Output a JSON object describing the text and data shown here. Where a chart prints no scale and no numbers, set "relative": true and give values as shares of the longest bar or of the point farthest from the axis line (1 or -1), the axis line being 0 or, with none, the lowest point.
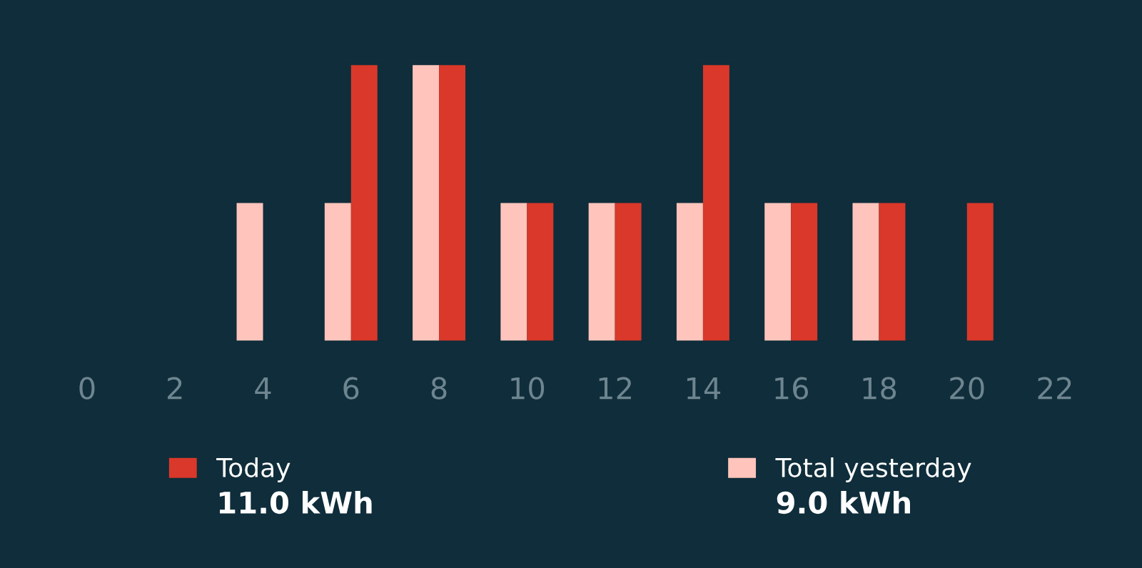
{
  "chart_data": {
    "type": "bar",
    "relative": true,
    "categories": [
      "0",
      "2",
      "4",
      "6",
      "8",
      "10",
      "12",
      "14",
      "16",
      "18",
      "20",
      "22"
    ],
    "series": [
      {
        "name": "Total yesterday",
        "color": "#ffc4bb",
        "values": [
          null,
          null,
          0.5,
          0.5,
          1,
          0.5,
          0.5,
          0.5,
          0.5,
          0.5,
          null,
          null
        ]
      },
      {
        "name": "Today",
        "color": "#d9382a",
        "values": [
          null,
          null,
          null,
          1,
          1,
          0.5,
          0.5,
          1,
          0.5,
          0.5,
          0.5,
          null
        ]
      }
    ],
    "legend": "bottom",
    "grid": false,
    "annotations": [
      "9.0 kWh",
      "11.0 kWh"
    ]
  }
}
